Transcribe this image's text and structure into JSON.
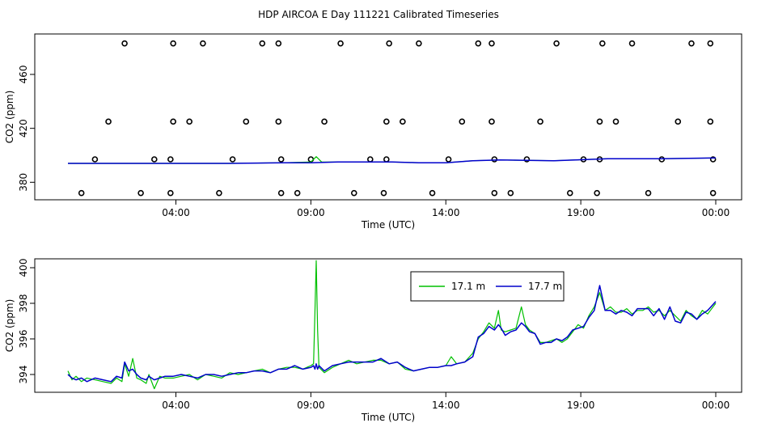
{
  "title": "HDP AIRCOA E  Day 111221  Calibrated Timeseries",
  "colors": {
    "series_a": "#00c000",
    "series_b": "#0000cc",
    "markers": "#000000"
  },
  "chart_data": [
    {
      "type": "line",
      "panel": "top",
      "xlabel": "Time (UTC)",
      "ylabel": "CO2 (ppm)",
      "x_ticks": [
        {
          "label": "04:00",
          "hours": 4
        },
        {
          "label": "09:00",
          "hours": 9
        },
        {
          "label": "14:00",
          "hours": 14
        },
        {
          "label": "19:00",
          "hours": 19
        },
        {
          "label": "00:00",
          "hours": 24
        }
      ],
      "y_ticks": [
        380,
        420,
        460
      ],
      "xlim_hours": [
        0,
        24
      ],
      "ylim": [
        367,
        490
      ],
      "grid": false,
      "scatter_points": [
        {
          "hours": 0.5,
          "y": 372
        },
        {
          "hours": 1.0,
          "y": 397
        },
        {
          "hours": 1.5,
          "y": 425
        },
        {
          "hours": 2.1,
          "y": 483
        },
        {
          "hours": 2.7,
          "y": 372
        },
        {
          "hours": 3.2,
          "y": 397
        },
        {
          "hours": 3.8,
          "y": 372
        },
        {
          "hours": 3.8,
          "y": 397
        },
        {
          "hours": 3.9,
          "y": 425
        },
        {
          "hours": 3.9,
          "y": 483
        },
        {
          "hours": 4.5,
          "y": 425
        },
        {
          "hours": 5.0,
          "y": 483
        },
        {
          "hours": 5.6,
          "y": 372
        },
        {
          "hours": 6.1,
          "y": 397
        },
        {
          "hours": 6.6,
          "y": 425
        },
        {
          "hours": 7.2,
          "y": 483
        },
        {
          "hours": 7.8,
          "y": 483
        },
        {
          "hours": 7.8,
          "y": 425
        },
        {
          "hours": 7.9,
          "y": 397
        },
        {
          "hours": 7.9,
          "y": 372
        },
        {
          "hours": 8.5,
          "y": 372
        },
        {
          "hours": 9.0,
          "y": 397
        },
        {
          "hours": 9.5,
          "y": 425
        },
        {
          "hours": 10.1,
          "y": 483
        },
        {
          "hours": 10.6,
          "y": 372
        },
        {
          "hours": 11.2,
          "y": 397
        },
        {
          "hours": 11.7,
          "y": 372
        },
        {
          "hours": 11.8,
          "y": 397
        },
        {
          "hours": 11.8,
          "y": 425
        },
        {
          "hours": 11.9,
          "y": 483
        },
        {
          "hours": 12.4,
          "y": 425
        },
        {
          "hours": 13.0,
          "y": 483
        },
        {
          "hours": 13.5,
          "y": 372
        },
        {
          "hours": 14.1,
          "y": 397
        },
        {
          "hours": 14.6,
          "y": 425
        },
        {
          "hours": 15.2,
          "y": 483
        },
        {
          "hours": 15.7,
          "y": 483
        },
        {
          "hours": 15.7,
          "y": 425
        },
        {
          "hours": 15.8,
          "y": 397
        },
        {
          "hours": 15.8,
          "y": 372
        },
        {
          "hours": 16.4,
          "y": 372
        },
        {
          "hours": 17.0,
          "y": 397
        },
        {
          "hours": 17.5,
          "y": 425
        },
        {
          "hours": 18.1,
          "y": 483
        },
        {
          "hours": 18.6,
          "y": 372
        },
        {
          "hours": 19.1,
          "y": 397
        },
        {
          "hours": 19.6,
          "y": 372
        },
        {
          "hours": 19.7,
          "y": 397
        },
        {
          "hours": 19.7,
          "y": 425
        },
        {
          "hours": 19.8,
          "y": 483
        },
        {
          "hours": 20.3,
          "y": 425
        },
        {
          "hours": 20.9,
          "y": 483
        },
        {
          "hours": 21.5,
          "y": 372
        },
        {
          "hours": 22.0,
          "y": 397
        },
        {
          "hours": 22.6,
          "y": 425
        },
        {
          "hours": 23.1,
          "y": 483
        },
        {
          "hours": 23.8,
          "y": 483
        },
        {
          "hours": 23.8,
          "y": 425
        },
        {
          "hours": 23.9,
          "y": 397
        },
        {
          "hours": 23.9,
          "y": 372
        }
      ],
      "series": [
        {
          "hours": [
            0,
            2,
            4,
            6,
            8,
            9,
            9.2,
            9.4,
            10,
            12,
            13,
            14,
            15,
            16,
            18,
            20,
            22,
            24
          ],
          "values": [
            394,
            394,
            394,
            394,
            394.5,
            395,
            399,
            395,
            395,
            395,
            394.5,
            394.5,
            396,
            396.5,
            396,
            397.5,
            397.5,
            398
          ]
        },
        {
          "hours": [
            0,
            2,
            4,
            6,
            8,
            9,
            10,
            12,
            13,
            14,
            15,
            16,
            18,
            20,
            22,
            24
          ],
          "values": [
            394,
            394,
            394,
            394,
            394.5,
            394.5,
            395,
            395,
            394.5,
            394.5,
            396,
            396.5,
            396,
            397.5,
            397.5,
            398
          ]
        }
      ]
    },
    {
      "type": "line",
      "panel": "bottom",
      "xlabel": "Time (UTC)",
      "ylabel": "CO2 (ppm)",
      "x_ticks": [
        {
          "label": "04:00",
          "hours": 4
        },
        {
          "label": "09:00",
          "hours": 9
        },
        {
          "label": "14:00",
          "hours": 14
        },
        {
          "label": "19:00",
          "hours": 19
        },
        {
          "label": "00:00",
          "hours": 24
        }
      ],
      "y_ticks": [
        394,
        396,
        398,
        400
      ],
      "xlim_hours": [
        0,
        24
      ],
      "ylim": [
        393,
        400.5
      ],
      "grid": false,
      "legend": {
        "placement": "top-center"
      },
      "series": [
        {
          "name": "17.1 m",
          "hours": [
            0,
            0.15,
            0.3,
            0.5,
            0.7,
            1.0,
            1.3,
            1.6,
            1.8,
            2.0,
            2.1,
            2.25,
            2.4,
            2.55,
            2.7,
            2.9,
            3.0,
            3.2,
            3.4,
            3.6,
            3.9,
            4.2,
            4.5,
            4.8,
            5.1,
            5.4,
            5.7,
            6.0,
            6.3,
            6.6,
            6.9,
            7.2,
            7.5,
            7.8,
            8.1,
            8.4,
            8.7,
            9.0,
            9.1,
            9.15,
            9.2,
            9.25,
            9.3,
            9.5,
            9.8,
            10.1,
            10.4,
            10.7,
            11.0,
            11.3,
            11.6,
            11.9,
            12.2,
            12.5,
            12.8,
            13.1,
            13.4,
            13.7,
            14.0,
            14.2,
            14.4,
            14.7,
            15.0,
            15.2,
            15.4,
            15.6,
            15.8,
            15.95,
            16.05,
            16.2,
            16.4,
            16.6,
            16.8,
            16.95,
            17.1,
            17.3,
            17.5,
            17.7,
            17.9,
            18.1,
            18.3,
            18.5,
            18.7,
            18.9,
            19.1,
            19.3,
            19.5,
            19.7,
            19.9,
            20.1,
            20.3,
            20.5,
            20.7,
            20.9,
            21.1,
            21.3,
            21.5,
            21.7,
            21.9,
            22.1,
            22.3,
            22.5,
            22.7,
            22.9,
            23.1,
            23.3,
            23.5,
            23.7,
            24.0
          ],
          "values": [
            394.2,
            393.7,
            393.9,
            393.6,
            393.8,
            393.7,
            393.6,
            393.5,
            393.8,
            393.6,
            394.6,
            393.9,
            394.9,
            393.8,
            393.7,
            393.5,
            394.0,
            393.2,
            393.9,
            393.8,
            393.8,
            393.9,
            394.0,
            393.7,
            394.0,
            393.9,
            393.8,
            394.1,
            394.0,
            394.1,
            394.2,
            394.3,
            394.1,
            394.3,
            394.4,
            394.4,
            394.3,
            394.5,
            394.6,
            397.5,
            400.4,
            396.5,
            394.4,
            394.1,
            394.4,
            394.6,
            394.8,
            394.6,
            394.7,
            394.8,
            394.8,
            394.6,
            394.7,
            394.3,
            394.2,
            394.3,
            394.4,
            394.4,
            394.5,
            395.0,
            394.6,
            394.7,
            395.2,
            396.0,
            396.4,
            396.9,
            396.6,
            397.6,
            396.5,
            396.4,
            396.5,
            396.6,
            397.8,
            396.8,
            396.5,
            396.3,
            395.8,
            395.8,
            395.9,
            396.0,
            395.8,
            396.0,
            396.4,
            396.8,
            396.6,
            397.3,
            397.8,
            398.6,
            397.6,
            397.8,
            397.5,
            397.5,
            397.7,
            397.4,
            397.6,
            397.6,
            397.8,
            397.5,
            397.6,
            397.3,
            397.6,
            397.3,
            397.0,
            397.6,
            397.3,
            397.1,
            397.6,
            397.4,
            398.0
          ]
        },
        {
          "name": "17.7 m",
          "hours": [
            0,
            0.15,
            0.3,
            0.5,
            0.7,
            1.0,
            1.3,
            1.6,
            1.8,
            2.0,
            2.1,
            2.25,
            2.4,
            2.55,
            2.7,
            2.9,
            3.0,
            3.2,
            3.4,
            3.6,
            3.9,
            4.2,
            4.5,
            4.8,
            5.1,
            5.4,
            5.7,
            6.0,
            6.3,
            6.6,
            6.9,
            7.2,
            7.5,
            7.8,
            8.1,
            8.4,
            8.7,
            9.0,
            9.1,
            9.15,
            9.2,
            9.25,
            9.3,
            9.5,
            9.8,
            10.1,
            10.4,
            10.7,
            11.0,
            11.3,
            11.6,
            11.9,
            12.2,
            12.5,
            12.8,
            13.1,
            13.4,
            13.7,
            14.0,
            14.2,
            14.4,
            14.7,
            15.0,
            15.2,
            15.4,
            15.6,
            15.8,
            15.95,
            16.05,
            16.2,
            16.4,
            16.6,
            16.8,
            16.95,
            17.1,
            17.3,
            17.5,
            17.7,
            17.9,
            18.1,
            18.3,
            18.5,
            18.7,
            18.9,
            19.1,
            19.3,
            19.5,
            19.7,
            19.9,
            20.1,
            20.3,
            20.5,
            20.7,
            20.9,
            21.1,
            21.3,
            21.5,
            21.7,
            21.9,
            22.1,
            22.3,
            22.5,
            22.7,
            22.9,
            23.1,
            23.3,
            23.5,
            23.7,
            24.0
          ],
          "values": [
            394.0,
            393.8,
            393.7,
            393.8,
            393.6,
            393.8,
            393.7,
            393.6,
            393.9,
            393.8,
            394.7,
            394.2,
            394.3,
            394.0,
            393.8,
            393.7,
            393.9,
            393.7,
            393.8,
            393.9,
            393.9,
            394.0,
            393.9,
            393.8,
            394.0,
            394.0,
            393.9,
            394.0,
            394.1,
            394.1,
            394.2,
            394.2,
            394.1,
            394.3,
            394.3,
            394.5,
            394.3,
            394.4,
            394.5,
            394.3,
            394.6,
            394.3,
            394.5,
            394.2,
            394.5,
            394.6,
            394.7,
            394.7,
            394.7,
            394.7,
            394.9,
            394.6,
            394.7,
            394.4,
            394.2,
            394.3,
            394.4,
            394.4,
            394.5,
            394.5,
            394.6,
            394.7,
            395.0,
            396.1,
            396.3,
            396.7,
            396.5,
            396.8,
            396.6,
            396.2,
            396.4,
            396.5,
            396.9,
            396.7,
            396.4,
            396.3,
            395.7,
            395.8,
            395.8,
            396.0,
            395.9,
            396.1,
            396.5,
            396.6,
            396.7,
            397.2,
            397.6,
            399.0,
            397.6,
            397.6,
            397.4,
            397.6,
            397.5,
            397.3,
            397.7,
            397.7,
            397.7,
            397.3,
            397.7,
            397.1,
            397.8,
            397.0,
            396.9,
            397.5,
            397.4,
            397.1,
            397.4,
            397.6,
            398.1
          ]
        }
      ]
    }
  ]
}
